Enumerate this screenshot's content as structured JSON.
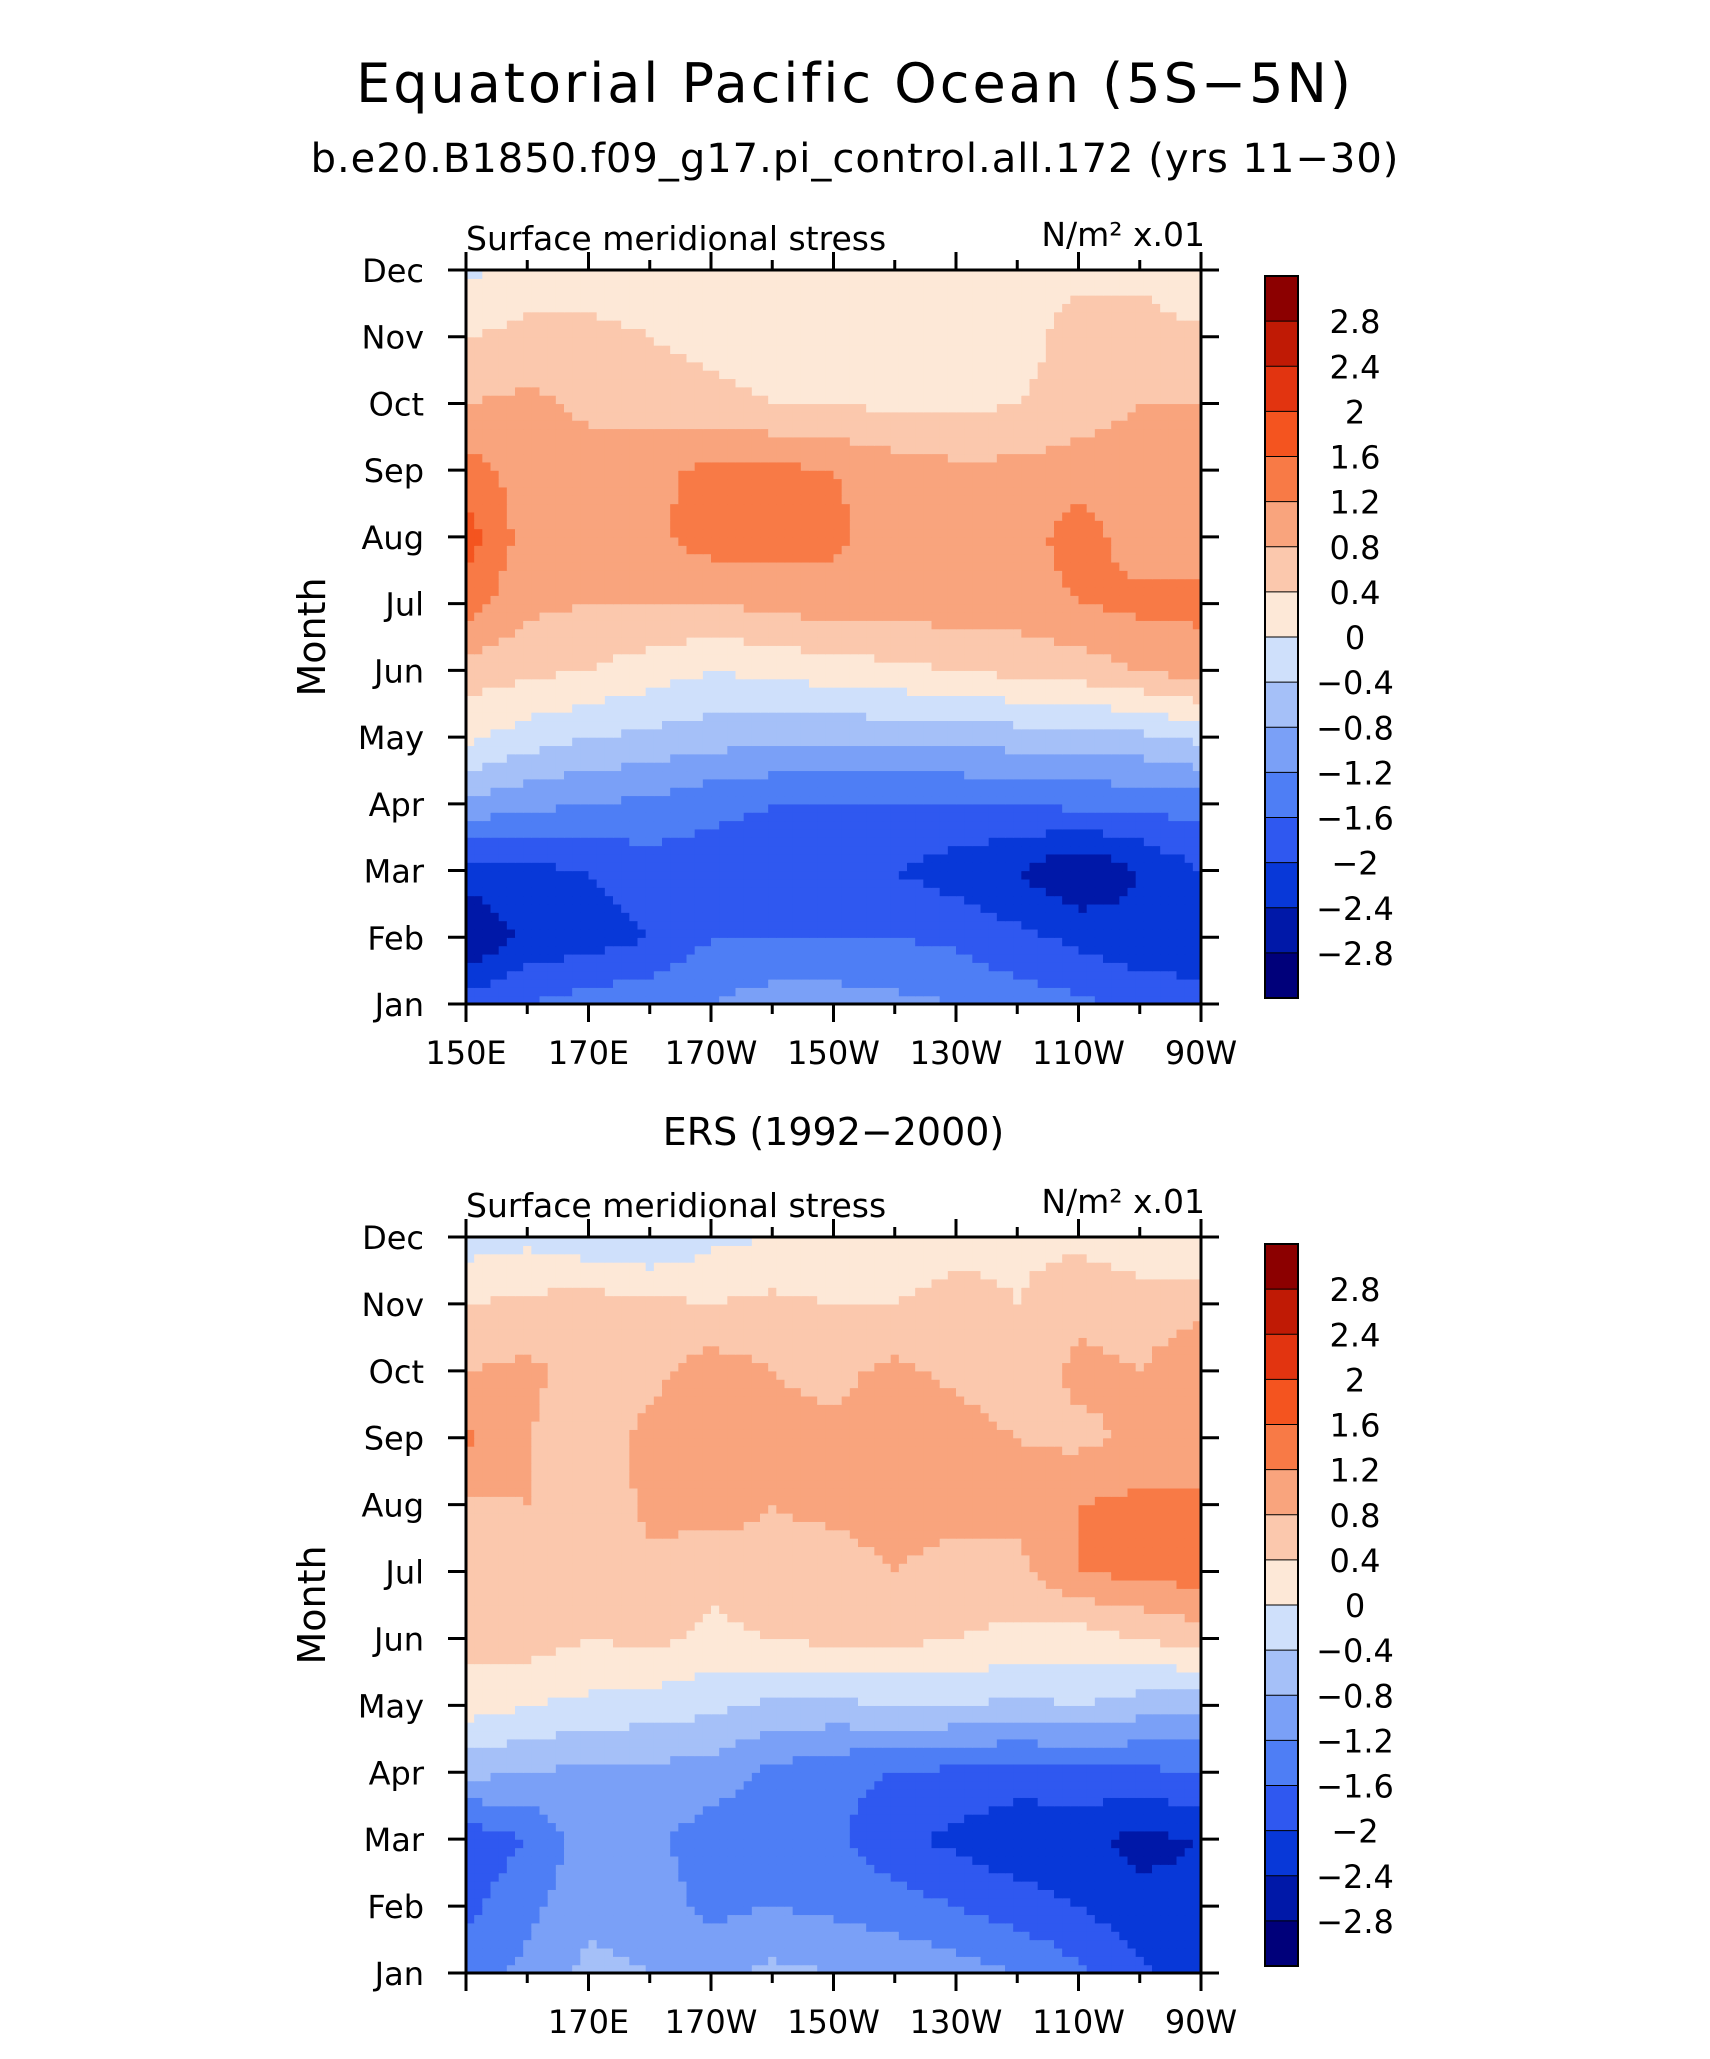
{
  "figure": {
    "title": "Equatorial Pacific Ocean (5S−5N)",
    "subtitle": "b.e20.B1850.f09_g17.pi_control.all.172 (yrs 11−30)"
  },
  "chart_data": [
    {
      "type": "heatmap",
      "title": "",
      "left_label": "Surface meridional stress",
      "units": "N/m² x.01",
      "ylabel": "Month",
      "xlabel": "",
      "x_tick_labels": [
        "150E",
        "170E",
        "170W",
        "150W",
        "130W",
        "110W",
        "90W"
      ],
      "x_range": [
        "150E",
        "90W"
      ],
      "y_tick_labels": [
        "Jan",
        "Feb",
        "Mar",
        "Apr",
        "May",
        "Jun",
        "Jul",
        "Aug",
        "Sep",
        "Oct",
        "Nov",
        "Dec"
      ],
      "x": [
        150,
        160,
        170,
        180,
        190,
        200,
        210,
        220,
        230,
        240,
        250,
        260,
        270
      ],
      "y": [
        "Jan",
        "Feb",
        "Mar",
        "Apr",
        "May",
        "Jun",
        "Jul",
        "Aug",
        "Sep",
        "Oct",
        "Nov",
        "Dec"
      ],
      "z": [
        [
          -1.8,
          -1.6,
          -1.4,
          -1.3,
          -1.2,
          -1.0,
          -1.0,
          -1.1,
          -1.2,
          -1.4,
          -1.5,
          -1.7,
          -1.9
        ],
        [
          -2.8,
          -2.3,
          -2.2,
          -2.0,
          -1.6,
          -1.6,
          -1.6,
          -1.6,
          -1.7,
          -1.9,
          -2.1,
          -2.3,
          -2.2
        ],
        [
          -2.2,
          -2.1,
          -2.0,
          -1.8,
          -1.8,
          -1.8,
          -1.8,
          -2.0,
          -2.2,
          -2.4,
          -2.8,
          -2.4,
          -2.0
        ],
        [
          -0.9,
          -1.1,
          -1.2,
          -1.3,
          -1.5,
          -1.6,
          -1.6,
          -1.6,
          -1.6,
          -1.6,
          -1.5,
          -1.5,
          -1.4
        ],
        [
          0.1,
          -0.2,
          -0.4,
          -0.5,
          -0.6,
          -0.7,
          -0.7,
          -0.7,
          -0.7,
          -0.6,
          -0.6,
          -0.5,
          -0.3
        ],
        [
          0.6,
          0.5,
          0.4,
          0.2,
          0.0,
          0.1,
          0.2,
          0.3,
          0.4,
          0.5,
          0.6,
          0.8,
          1.0
        ],
        [
          1.4,
          0.9,
          0.8,
          0.8,
          0.8,
          0.9,
          1.0,
          1.0,
          1.0,
          1.0,
          1.2,
          1.3,
          1.3
        ],
        [
          1.8,
          1.0,
          0.9,
          1.1,
          1.4,
          1.4,
          1.3,
          1.0,
          0.9,
          1.0,
          1.4,
          1.0,
          1.0
        ],
        [
          1.4,
          1.0,
          1.0,
          1.1,
          1.3,
          1.3,
          1.2,
          1.0,
          0.9,
          0.9,
          1.0,
          1.0,
          0.9
        ],
        [
          0.8,
          0.9,
          0.7,
          0.6,
          0.5,
          0.4,
          0.4,
          0.3,
          0.3,
          0.4,
          0.6,
          0.8,
          0.8
        ],
        [
          0.4,
          0.5,
          0.5,
          0.4,
          0.3,
          0.2,
          0.2,
          0.2,
          0.2,
          0.2,
          0.6,
          0.6,
          0.5
        ],
        [
          -0.1,
          0.2,
          0.2,
          0.2,
          0.1,
          0.1,
          0.1,
          0.1,
          0.1,
          0.2,
          0.3,
          0.3,
          0.0
        ]
      ]
    },
    {
      "type": "heatmap",
      "title": "ERS (1992−2000)",
      "left_label": "Surface meridional stress",
      "units": "N/m² x.01",
      "ylabel": "Month",
      "xlabel": "",
      "x_tick_labels": [
        "170E",
        "170W",
        "150W",
        "130W",
        "110W",
        "90W"
      ],
      "x_range": [
        "150E",
        "90W"
      ],
      "y_tick_labels": [
        "Jan",
        "Feb",
        "Mar",
        "Apr",
        "May",
        "Jun",
        "Jul",
        "Aug",
        "Sep",
        "Oct",
        "Nov",
        "Dec"
      ],
      "x": [
        150,
        160,
        170,
        180,
        190,
        200,
        210,
        220,
        230,
        240,
        250,
        260,
        270
      ],
      "y": [
        "Jan",
        "Feb",
        "Mar",
        "Apr",
        "May",
        "Jun",
        "Jul",
        "Aug",
        "Sep",
        "Oct",
        "Nov",
        "Dec"
      ],
      "z": [
        [
          -1.4,
          -1.1,
          -0.7,
          -0.8,
          -0.9,
          -0.7,
          -0.8,
          -0.9,
          -1.0,
          -1.2,
          -1.5,
          -1.9,
          -2.2
        ],
        [
          -1.7,
          -1.3,
          -0.9,
          -1.0,
          -1.3,
          -1.2,
          -1.3,
          -1.4,
          -1.6,
          -1.8,
          -2.0,
          -2.3,
          -2.3
        ],
        [
          -1.9,
          -1.6,
          -1.0,
          -1.1,
          -1.4,
          -1.4,
          -1.5,
          -1.9,
          -2.1,
          -2.3,
          -2.3,
          -2.5,
          -2.4
        ],
        [
          -0.7,
          -0.8,
          -0.9,
          -0.9,
          -1.0,
          -1.3,
          -1.5,
          -1.6,
          -1.7,
          -1.8,
          -1.7,
          -1.7,
          -1.6
        ],
        [
          0.2,
          0.0,
          -0.1,
          -0.2,
          -0.3,
          -0.5,
          -0.5,
          -0.4,
          -0.4,
          -0.5,
          -0.4,
          -0.6,
          -0.7
        ],
        [
          0.5,
          0.6,
          0.4,
          0.5,
          0.3,
          0.4,
          0.5,
          0.5,
          0.4,
          0.3,
          0.2,
          0.4,
          0.6
        ],
        [
          0.7,
          0.6,
          0.6,
          0.7,
          0.5,
          0.7,
          0.6,
          0.8,
          0.6,
          0.7,
          1.2,
          1.3,
          1.4
        ],
        [
          0.7,
          0.8,
          0.5,
          0.9,
          1.0,
          0.8,
          0.9,
          1.0,
          1.0,
          0.9,
          1.2,
          1.3,
          1.2
        ],
        [
          1.3,
          0.8,
          0.6,
          0.9,
          1.0,
          0.9,
          0.9,
          1.0,
          1.0,
          0.8,
          0.7,
          0.9,
          1.2
        ],
        [
          0.8,
          0.9,
          0.6,
          0.7,
          1.0,
          0.8,
          0.7,
          0.9,
          0.7,
          0.5,
          0.9,
          0.8,
          1.1
        ],
        [
          0.4,
          0.5,
          0.6,
          0.5,
          0.4,
          0.5,
          0.4,
          0.4,
          0.6,
          0.4,
          0.7,
          0.6,
          0.7
        ],
        [
          -0.2,
          -0.1,
          -0.3,
          -0.4,
          -0.1,
          0.0,
          0.0,
          0.1,
          0.2,
          0.3,
          0.3,
          0.1,
          0.0
        ]
      ]
    }
  ],
  "colorbar": {
    "labels": [
      "2.8",
      "2.4",
      "2",
      "1.6",
      "1.2",
      "0.8",
      "0.4",
      "0",
      "−0.4",
      "−0.8",
      "−1.2",
      "−1.6",
      "−2",
      "−2.4",
      "−2.8"
    ],
    "levels": [
      -2.8,
      -2.4,
      -2.0,
      -1.6,
      -1.2,
      -0.8,
      -0.4,
      0.0,
      0.4,
      0.8,
      1.2,
      1.6,
      2.0,
      2.4,
      2.8
    ],
    "colors": [
      "#00007a",
      "#0018a8",
      "#0838d8",
      "#2f58f0",
      "#4e7ef5",
      "#7aa0f7",
      "#a5c0f8",
      "#cfe0fb",
      "#fde8d7",
      "#fbc8ad",
      "#f9a47d",
      "#f87a46",
      "#f4541f",
      "#e23410",
      "#c01a05",
      "#8c0000"
    ]
  }
}
